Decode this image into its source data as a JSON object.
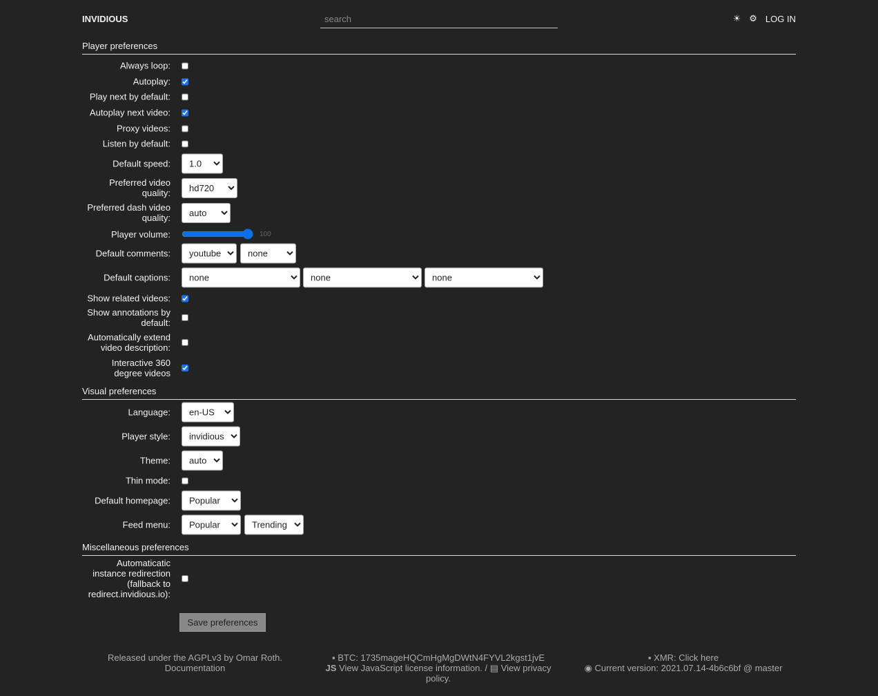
{
  "header": {
    "brand": "INVIDIOUS",
    "search_placeholder": "search",
    "theme_icon": "☀",
    "settings_icon": "⚙",
    "login": "LOG IN"
  },
  "sections": {
    "player": "Player preferences",
    "visual": "Visual preferences",
    "misc": "Miscellaneous preferences"
  },
  "player": {
    "always_loop": {
      "label": "Always loop:",
      "checked": false
    },
    "autoplay": {
      "label": "Autoplay:",
      "checked": true
    },
    "play_next": {
      "label": "Play next by default:",
      "checked": false
    },
    "autoplay_next": {
      "label": "Autoplay next video:",
      "checked": true
    },
    "proxy": {
      "label": "Proxy videos:",
      "checked": false
    },
    "listen": {
      "label": "Listen by default:",
      "checked": false
    },
    "speed": {
      "label": "Default speed:",
      "value": "1.0"
    },
    "quality": {
      "label": "Preferred video quality:",
      "value": "hd720"
    },
    "dash_quality": {
      "label": "Preferred dash video quality:",
      "value": "auto"
    },
    "volume": {
      "label": "Player volume:",
      "value": "100"
    },
    "comments": {
      "label": "Default comments:",
      "values": [
        "youtube",
        "none"
      ]
    },
    "captions": {
      "label": "Default captions:",
      "values": [
        "none",
        "none",
        "none"
      ]
    },
    "related": {
      "label": "Show related videos:",
      "checked": true
    },
    "annotations": {
      "label": "Show annotations by default:",
      "checked": false
    },
    "extend_desc": {
      "label": "Automatically extend video description:",
      "checked": false
    },
    "vr360": {
      "label": "Interactive 360 degree videos",
      "checked": true
    }
  },
  "visual": {
    "language": {
      "label": "Language:",
      "value": "en-US"
    },
    "player_style": {
      "label": "Player style:",
      "value": "invidious"
    },
    "theme": {
      "label": "Theme:",
      "value": "auto"
    },
    "thin_mode": {
      "label": "Thin mode:",
      "checked": false
    },
    "homepage": {
      "label": "Default homepage:",
      "value": "Popular"
    },
    "feed_menu": {
      "label": "Feed menu:",
      "values": [
        "Popular",
        "Trending"
      ]
    }
  },
  "misc": {
    "redirect": {
      "label": "Automaticatic instance redirection (fallback to redirect.invidious.io):",
      "checked": false
    }
  },
  "save": "Save preferences",
  "footer": {
    "released": "Released under the AGPLv3 by Omar Roth.",
    "documentation": "Documentation",
    "btc": "BTC: 1735mageHQCmHgMgDWtN4FYVL2kgst1jvE",
    "js_license": "View JavaScript license information.",
    "separator": "/",
    "privacy": "View privacy policy.",
    "xmr": "XMR: Click here",
    "version": "Current version: 2021.07.14-4b6c6bf @ master"
  }
}
